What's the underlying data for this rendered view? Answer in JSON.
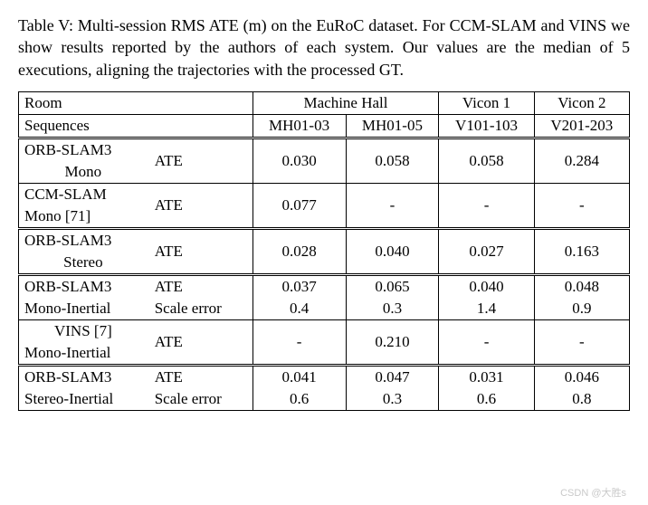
{
  "caption": "Table V: Multi-session RMS ATE (m) on the EuRoC dataset. For CCM-SLAM and VINS we show results reported by the authors of each system. Our values are the median of 5 executions, aligning the trajectories with the processed GT.",
  "header": {
    "room": "Room",
    "sequences": "Sequences",
    "mh": "Machine Hall",
    "v1": "Vicon 1",
    "v2": "Vicon 2",
    "mh0103": "MH01-03",
    "mh0105": "MH01-05",
    "v101103": "V101-103",
    "v201203": "V201-203"
  },
  "rows": {
    "orb_mono": {
      "name": "ORB-SLAM3",
      "sub": "Mono",
      "metric": "ATE",
      "v": [
        "0.030",
        "0.058",
        "0.058",
        "0.284"
      ]
    },
    "ccm_mono": {
      "name": "CCM-SLAM",
      "sub": "Mono [71]",
      "metric": "ATE",
      "v": [
        "0.077",
        "-",
        "-",
        "-"
      ]
    },
    "orb_stereo": {
      "name": "ORB-SLAM3",
      "sub": "Stereo",
      "metric": "ATE",
      "v": [
        "0.028",
        "0.040",
        "0.027",
        "0.163"
      ]
    },
    "orb_mi_ate": {
      "name": "ORB-SLAM3",
      "sub": "Mono-Inertial",
      "metric": "ATE",
      "v": [
        "0.037",
        "0.065",
        "0.040",
        "0.048"
      ]
    },
    "orb_mi_scale": {
      "metric": "Scale error",
      "v": [
        "0.4",
        "0.3",
        "1.4",
        "0.9"
      ]
    },
    "vins_mi": {
      "name": "VINS [7]",
      "sub": "Mono-Inertial",
      "metric": "ATE",
      "v": [
        "-",
        "0.210",
        "-",
        "-"
      ]
    },
    "orb_si_ate": {
      "name": "ORB-SLAM3",
      "sub": "Stereo-Inertial",
      "metric": "ATE",
      "v": [
        "0.041",
        "0.047",
        "0.031",
        "0.046"
      ]
    },
    "orb_si_scale": {
      "metric": "Scale error",
      "v": [
        "0.6",
        "0.3",
        "0.6",
        "0.8"
      ]
    }
  },
  "watermark": "CSDN @大胜s"
}
